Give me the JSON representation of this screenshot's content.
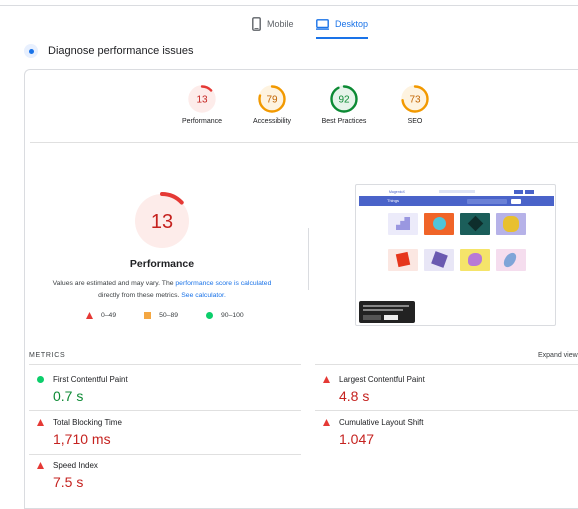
{
  "tabs": {
    "mobile": "Mobile",
    "desktop": "Desktop"
  },
  "diagnose": {
    "title": "Diagnose performance issues"
  },
  "gauges": [
    {
      "label": "Performance",
      "score": "13",
      "color": "#e53935",
      "track": "#fdecea",
      "fraction": 0.13
    },
    {
      "label": "Accessibility",
      "score": "79",
      "color": "#f29900",
      "track": "#fef3e0",
      "fraction": 0.79
    },
    {
      "label": "Best Practices",
      "score": "92",
      "color": "#0c8a34",
      "track": "#e6f4ea",
      "fraction": 0.92
    },
    {
      "label": "SEO",
      "score": "73",
      "color": "#f29900",
      "track": "#fef3e0",
      "fraction": 0.73
    }
  ],
  "summary": {
    "score": "13",
    "title": "Performance",
    "note_pre": "Values are estimated and may vary. The ",
    "note_link1": "performance score is calculated",
    "note_mid": " directly from these metrics. ",
    "note_link2": "See calculator.",
    "color": "#e53935",
    "fraction": 0.13
  },
  "legend": [
    {
      "shape": "triangle",
      "range": "0–49",
      "color": "#e53935"
    },
    {
      "shape": "square",
      "range": "50–89",
      "color": "#f4a742"
    },
    {
      "shape": "circle",
      "range": "90–100",
      "color": "#0cce6b"
    }
  ],
  "screenshot": {
    "brand": "MagentoX",
    "hero_title": "Things"
  },
  "metrics": {
    "heading": "METRICS",
    "expand": "Expand view",
    "items": [
      {
        "name": "First Contentful Paint",
        "value": "0.7 s",
        "status": "good"
      },
      {
        "name": "Largest Contentful Paint",
        "value": "4.8 s",
        "status": "poor"
      },
      {
        "name": "Total Blocking Time",
        "value": "1,710 ms",
        "status": "poor"
      },
      {
        "name": "Cumulative Layout Shift",
        "value": "1.047",
        "status": "poor"
      },
      {
        "name": "Speed Index",
        "value": "7.5 s",
        "status": "poor"
      }
    ]
  }
}
